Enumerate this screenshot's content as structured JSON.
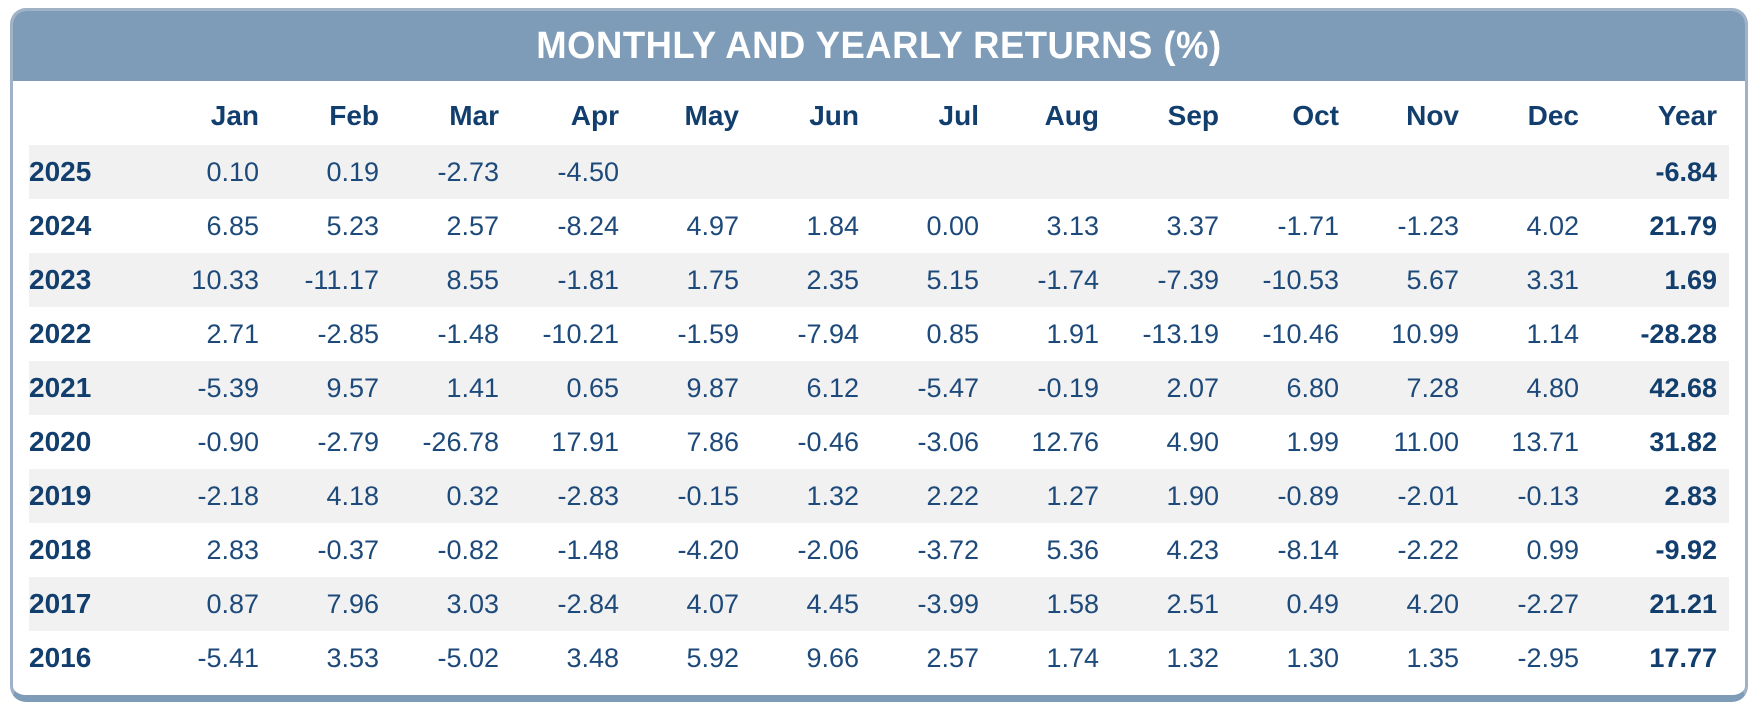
{
  "title": "MONTHLY AND YEARLY RETURNS (%)",
  "colors": {
    "header_bg": "#7E9BB8",
    "title_text": "#FFFFFF",
    "label_navy": "#123E6E",
    "value_navy": "#1D4A7A",
    "row_stripe": "#F1F1F1",
    "card_border": "#9FB2C6",
    "bottom_border": "#7E9BB8"
  },
  "chart_data": {
    "type": "table",
    "title": "MONTHLY AND YEARLY RETURNS (%)",
    "columns": [
      "Jan",
      "Feb",
      "Mar",
      "Apr",
      "May",
      "Jun",
      "Jul",
      "Aug",
      "Sep",
      "Oct",
      "Nov",
      "Dec",
      "Year"
    ],
    "rows": [
      {
        "year": "2025",
        "monthly": [
          "0.10",
          "0.19",
          "-2.73",
          "-4.50",
          "",
          "",
          "",
          "",
          "",
          "",
          "",
          ""
        ],
        "annual": "-6.84"
      },
      {
        "year": "2024",
        "monthly": [
          "6.85",
          "5.23",
          "2.57",
          "-8.24",
          "4.97",
          "1.84",
          "0.00",
          "3.13",
          "3.37",
          "-1.71",
          "-1.23",
          "4.02"
        ],
        "annual": "21.79"
      },
      {
        "year": "2023",
        "monthly": [
          "10.33",
          "-11.17",
          "8.55",
          "-1.81",
          "1.75",
          "2.35",
          "5.15",
          "-1.74",
          "-7.39",
          "-10.53",
          "5.67",
          "3.31"
        ],
        "annual": "1.69"
      },
      {
        "year": "2022",
        "monthly": [
          "2.71",
          "-2.85",
          "-1.48",
          "-10.21",
          "-1.59",
          "-7.94",
          "0.85",
          "1.91",
          "-13.19",
          "-10.46",
          "10.99",
          "1.14"
        ],
        "annual": "-28.28"
      },
      {
        "year": "2021",
        "monthly": [
          "-5.39",
          "9.57",
          "1.41",
          "0.65",
          "9.87",
          "6.12",
          "-5.47",
          "-0.19",
          "2.07",
          "6.80",
          "7.28",
          "4.80"
        ],
        "annual": "42.68"
      },
      {
        "year": "2020",
        "monthly": [
          "-0.90",
          "-2.79",
          "-26.78",
          "17.91",
          "7.86",
          "-0.46",
          "-3.06",
          "12.76",
          "4.90",
          "1.99",
          "11.00",
          "13.71"
        ],
        "annual": "31.82"
      },
      {
        "year": "2019",
        "monthly": [
          "-2.18",
          "4.18",
          "0.32",
          "-2.83",
          "-0.15",
          "1.32",
          "2.22",
          "1.27",
          "1.90",
          "-0.89",
          "-2.01",
          "-0.13"
        ],
        "annual": "2.83"
      },
      {
        "year": "2018",
        "monthly": [
          "2.83",
          "-0.37",
          "-0.82",
          "-1.48",
          "-4.20",
          "-2.06",
          "-3.72",
          "5.36",
          "4.23",
          "-8.14",
          "-2.22",
          "0.99"
        ],
        "annual": "-9.92"
      },
      {
        "year": "2017",
        "monthly": [
          "0.87",
          "7.96",
          "3.03",
          "-2.84",
          "4.07",
          "4.45",
          "-3.99",
          "1.58",
          "2.51",
          "0.49",
          "4.20",
          "-2.27"
        ],
        "annual": "21.21"
      },
      {
        "year": "2016",
        "monthly": [
          "-5.41",
          "3.53",
          "-5.02",
          "3.48",
          "5.92",
          "9.66",
          "2.57",
          "1.74",
          "1.32",
          "1.30",
          "1.35",
          "-2.95"
        ],
        "annual": "17.77"
      }
    ]
  }
}
